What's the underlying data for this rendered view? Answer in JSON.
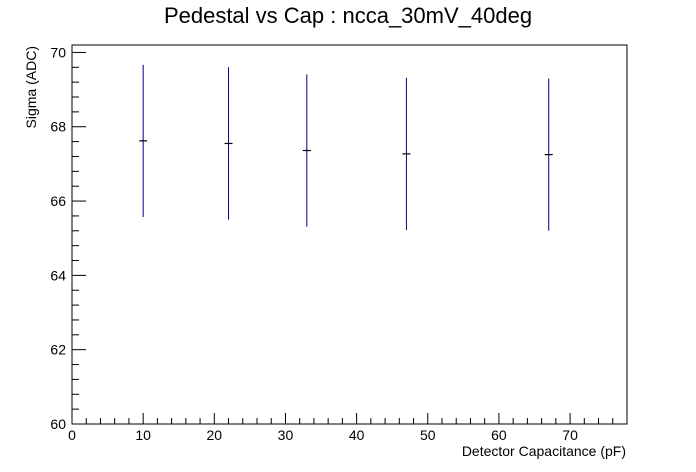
{
  "chart_data": {
    "type": "scatter",
    "title": "Pedestal vs Cap : ncca_30mV_40deg",
    "xlabel": "Detector Capacitance (pF)",
    "ylabel": "Sigma (ADC)",
    "xlim": [
      0,
      78
    ],
    "ylim": [
      60,
      70.2
    ],
    "x_ticks": [
      "0",
      "10",
      "20",
      "30",
      "40",
      "50",
      "60",
      "70"
    ],
    "y_ticks": [
      "60",
      "62",
      "64",
      "66",
      "68",
      "70"
    ],
    "grid": false,
    "series": [
      {
        "color": "#00008b",
        "x": [
          10,
          22,
          33,
          47,
          67
        ],
        "y": [
          67.62,
          67.55,
          67.36,
          67.27,
          67.25
        ],
        "y_err": [
          2.05,
          2.05,
          2.05,
          2.05,
          2.05
        ],
        "x_err": [
          0.5,
          0.5,
          0.5,
          0.5,
          0.5
        ]
      }
    ]
  }
}
